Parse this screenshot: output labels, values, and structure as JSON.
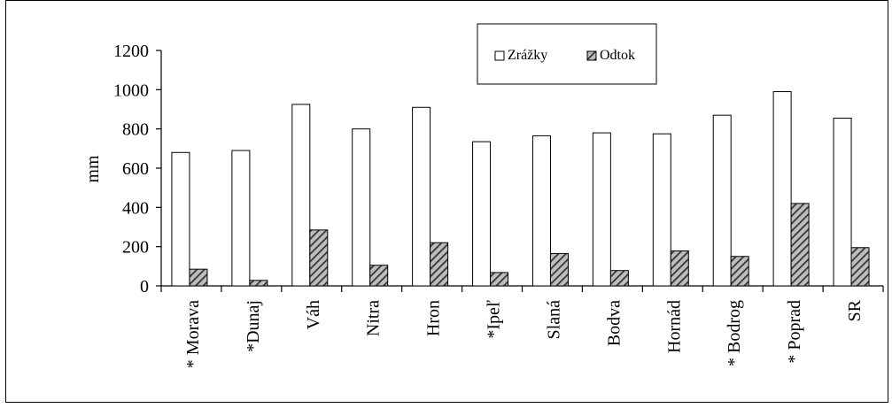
{
  "chart_data": {
    "type": "bar",
    "title": "",
    "xlabel": "",
    "ylabel": "mm",
    "ylim": [
      0,
      1200
    ],
    "yticks": [
      0,
      200,
      400,
      600,
      800,
      1000,
      1200
    ],
    "grid": false,
    "legend_position": "top-center",
    "categories": [
      "* Morava",
      "*Dunaj",
      "Váh",
      "Nitra",
      "Hron",
      "*Ipeľ",
      "Slaná",
      "Bodva",
      "Hornád",
      "* Bodrog",
      "* Poprad",
      "SR"
    ],
    "series": [
      {
        "name": "Zrážky",
        "style": "white",
        "values": [
          680,
          690,
          925,
          800,
          910,
          735,
          765,
          780,
          775,
          870,
          990,
          855
        ]
      },
      {
        "name": "Odtok",
        "style": "hatched",
        "values": [
          85,
          28,
          285,
          105,
          220,
          68,
          165,
          78,
          178,
          150,
          420,
          195
        ]
      }
    ]
  },
  "colors": {
    "background": "#ffffff",
    "axis": "#000000",
    "precip_fill": "#ffffff",
    "runoff_hatch_dark": "#333333",
    "runoff_hatch_light": "#bdbdbd"
  }
}
